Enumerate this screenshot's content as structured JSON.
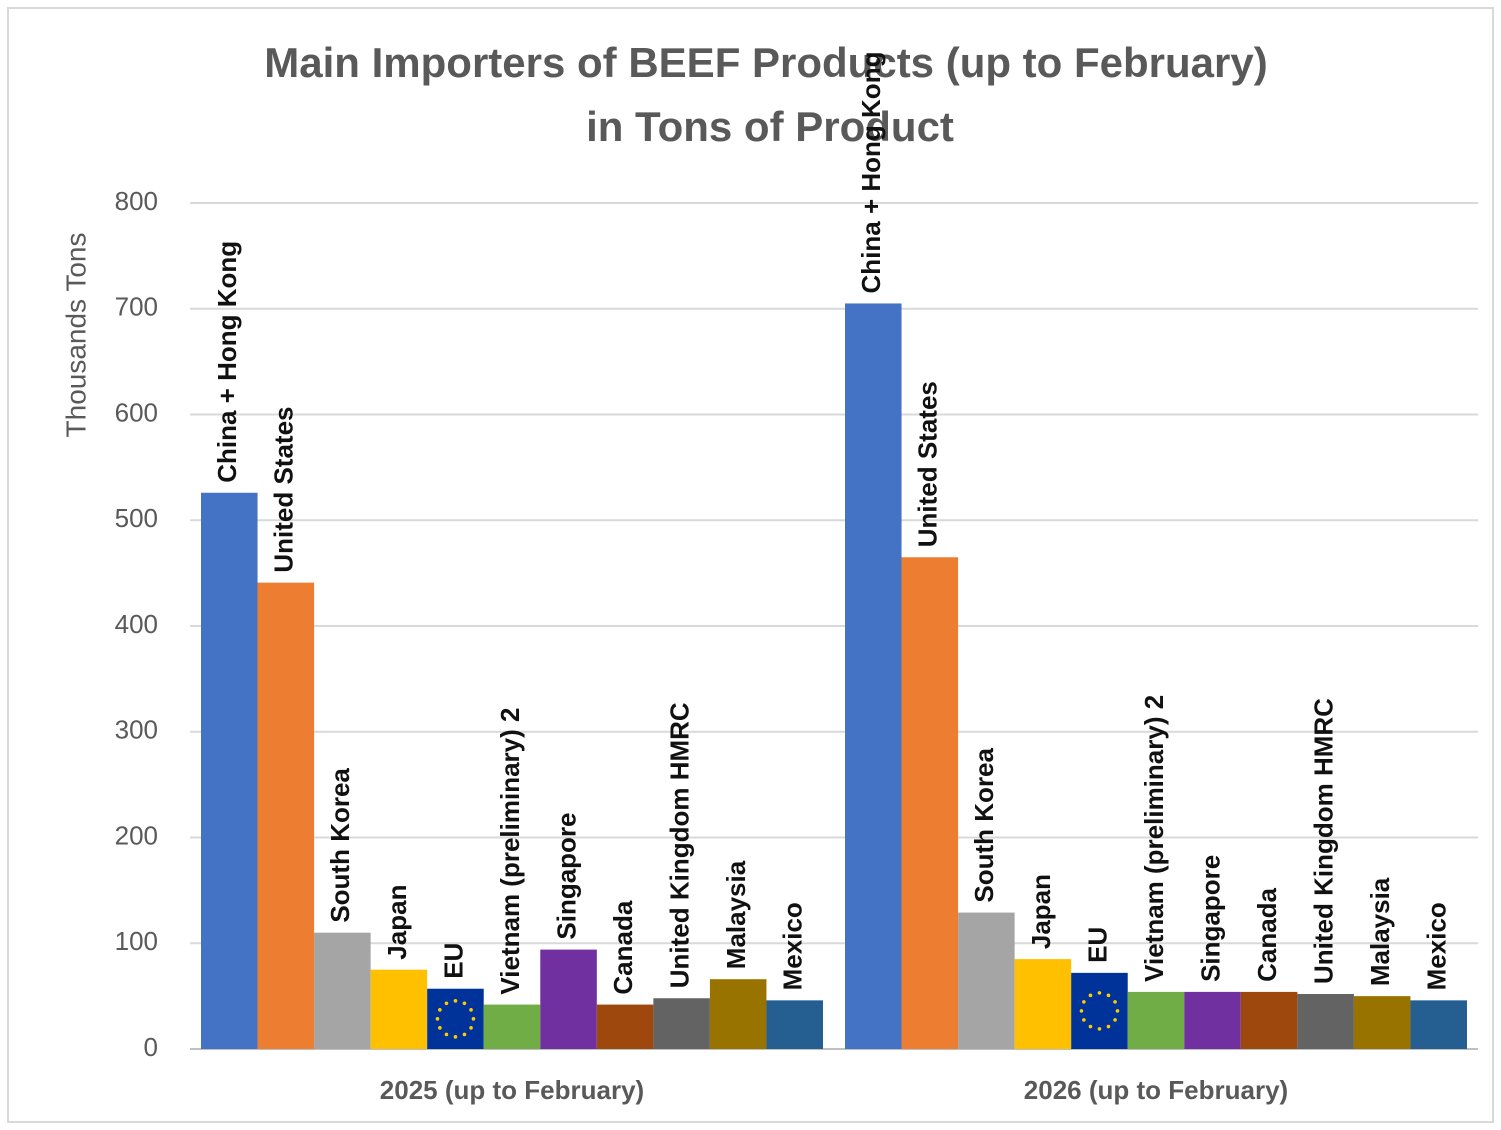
{
  "chart_data": {
    "type": "bar",
    "title": [
      "Main Importers of BEEF Products (up to February)",
      "in Tons of Product"
    ],
    "y_label": "Thousands Tons",
    "categories": [
      "2025 (up to February)",
      "2026 (up to February)"
    ],
    "series": [
      {
        "name": "China + Hong Kong",
        "color": "#4472c4",
        "values": [
          526,
          705
        ]
      },
      {
        "name": "United States",
        "color": "#ed7d31",
        "values": [
          441,
          465
        ]
      },
      {
        "name": "South Korea",
        "color": "#a5a5a5",
        "values": [
          110,
          129
        ]
      },
      {
        "name": "Japan",
        "color": "#ffc000",
        "values": [
          75,
          85
        ]
      },
      {
        "name": "EU",
        "color": "#003399",
        "values": [
          57,
          72
        ]
      },
      {
        "name": "Vietnam (preliminary) 2",
        "color": "#70ad47",
        "values": [
          42,
          54
        ]
      },
      {
        "name": "Singapore",
        "color": "#7030a0",
        "values": [
          94,
          54
        ]
      },
      {
        "name": "Canada",
        "color": "#9e480e",
        "values": [
          42,
          54
        ]
      },
      {
        "name": "United Kingdom HMRC",
        "color": "#636363",
        "values": [
          48,
          52
        ]
      },
      {
        "name": "Malaysia",
        "color": "#997300",
        "values": [
          66,
          50
        ]
      },
      {
        "name": "Mexico",
        "color": "#255e91",
        "values": [
          46,
          46
        ]
      }
    ],
    "ylim": [
      0,
      800
    ],
    "yticks": [
      0,
      100,
      200,
      300,
      400,
      500,
      600,
      700,
      800
    ],
    "grid": true
  }
}
